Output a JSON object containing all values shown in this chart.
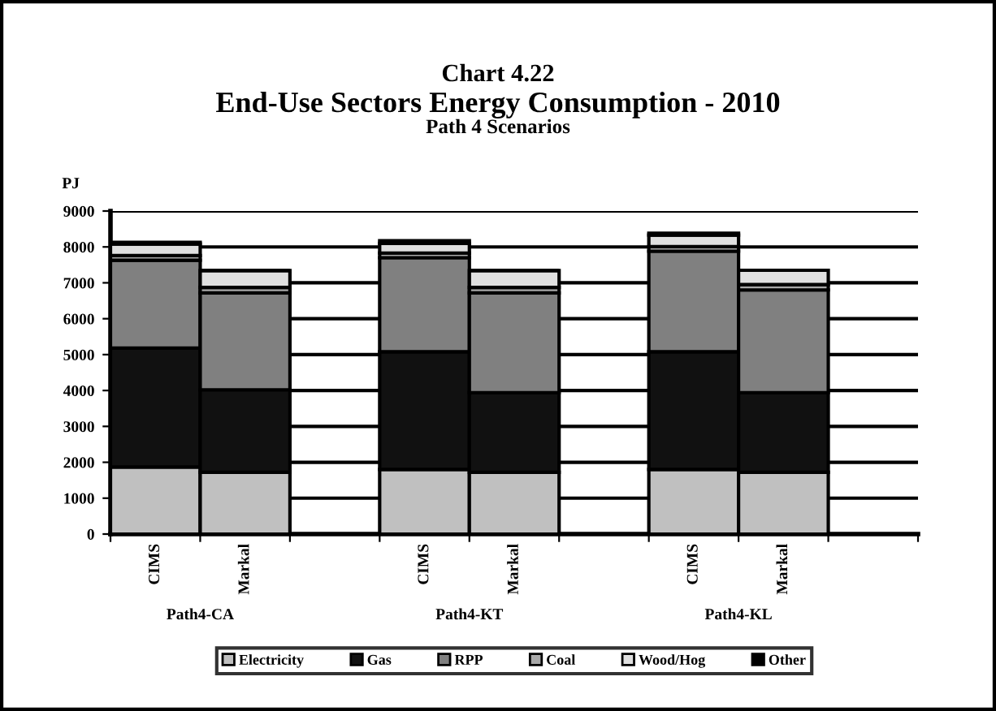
{
  "chart_data": {
    "type": "bar",
    "stacked": true,
    "title": "Chart 4.22\nEnd-Use Sectors Energy Consumption - 2010",
    "subtitle": "Path 4 Scenarios",
    "ylabel": "PJ",
    "categories": [
      "CIMS",
      "Markal",
      null,
      "CIMS",
      "Markal",
      null,
      "CIMS",
      "Markal",
      null
    ],
    "annotations": [
      "Path4-CA",
      "Path4-KT",
      "Path4-KL"
    ],
    "series": [
      {
        "name": "Electricity",
        "color": "#c0c0c0",
        "values": [
          1870,
          1720,
          null,
          1800,
          1720,
          null,
          1800,
          1720,
          null
        ]
      },
      {
        "name": "Gas",
        "color": "#111111",
        "values": [
          3310,
          2300,
          null,
          3280,
          2220,
          null,
          3280,
          2220,
          null
        ]
      },
      {
        "name": "RPP",
        "color": "#808080",
        "values": [
          2450,
          2700,
          null,
          2620,
          2780,
          null,
          2800,
          2860,
          null
        ]
      },
      {
        "name": "Coal",
        "color": "#a8a8a8",
        "values": [
          130,
          150,
          null,
          130,
          150,
          null,
          130,
          150,
          null
        ]
      },
      {
        "name": "Wood/Hog",
        "color": "#e0e0e0",
        "values": [
          320,
          470,
          null,
          270,
          470,
          null,
          320,
          400,
          null
        ]
      },
      {
        "name": "Other",
        "color": "#000000",
        "values": [
          50,
          0,
          null,
          70,
          0,
          null,
          50,
          0,
          null
        ]
      }
    ],
    "ylim": [
      0,
      9000
    ],
    "yticks": [
      0,
      1000,
      2000,
      3000,
      4000,
      5000,
      6000,
      7000,
      8000,
      9000
    ],
    "grid": "y",
    "legend": "bottom"
  }
}
